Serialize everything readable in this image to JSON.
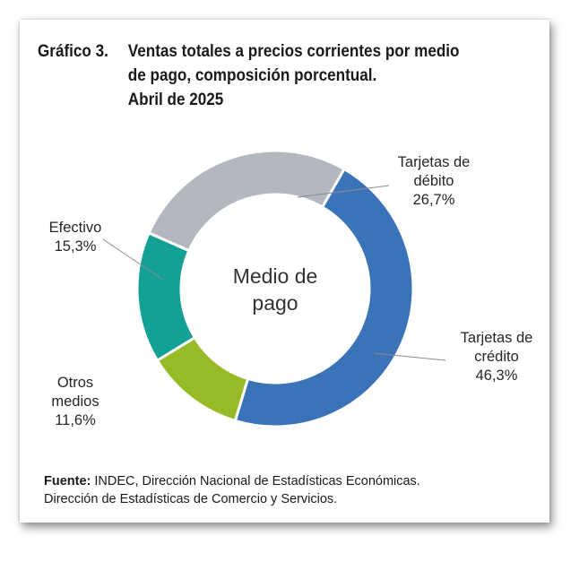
{
  "title": {
    "number": "Gráfico 3.",
    "lines": [
      "Ventas totales a precios corrientes por medio",
      "de pago, composición porcentual.",
      "Abril de 2025"
    ]
  },
  "source": {
    "label": "Fuente:",
    "line1": " INDEC, Dirección Nacional de Estadísticas Económicas.",
    "line2": "Dirección de Estadísticas de Comercio y Servicios."
  },
  "chart_data": {
    "type": "pie",
    "variant": "donut",
    "center_label": [
      "Medio de",
      "pago"
    ],
    "slices": [
      {
        "name": "Tarjetas de crédito",
        "label_lines": [
          "Tarjetas de",
          "crédito"
        ],
        "value": 46.3,
        "value_label": "46,3%",
        "color": "#3b73b9"
      },
      {
        "name": "Otros medios",
        "label_lines": [
          "Otros",
          "medios"
        ],
        "value": 11.6,
        "value_label": "11,6%",
        "color": "#97bb26"
      },
      {
        "name": "Efectivo",
        "label_lines": [
          "Efectivo"
        ],
        "value": 15.3,
        "value_label": "15,3%",
        "color": "#14a095"
      },
      {
        "name": "Tarjetas de débito",
        "label_lines": [
          "Tarjetas de",
          "débito"
        ],
        "value": 26.7,
        "value_label": "26,7%",
        "color": "#b3b8bf"
      }
    ]
  }
}
